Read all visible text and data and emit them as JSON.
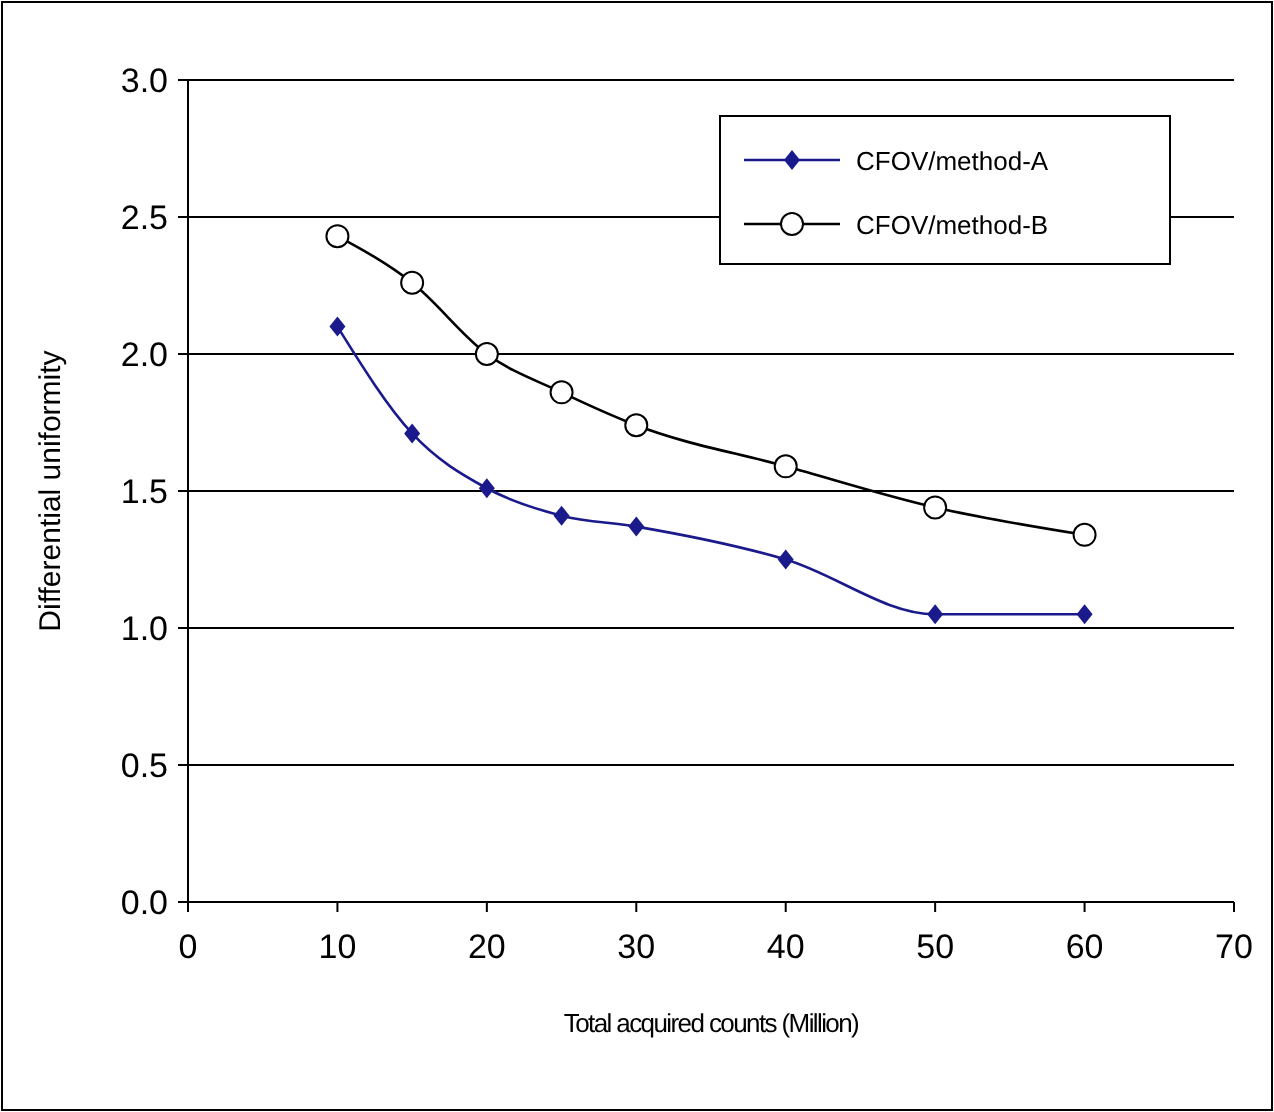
{
  "chart_data": {
    "type": "line",
    "xlabel": "Total acquired counts (Million)",
    "ylabel": "Differential uniformity",
    "x": [
      10,
      15,
      20,
      25,
      30,
      40,
      50,
      60
    ],
    "series": [
      {
        "name": "CFOV/method-A",
        "color": "#1a1a8c",
        "marker": "diamond",
        "values": [
          2.1,
          1.71,
          1.51,
          1.41,
          1.37,
          1.25,
          1.05,
          1.05
        ]
      },
      {
        "name": "CFOV/method-B",
        "color": "#000000",
        "marker": "circle",
        "values": [
          2.43,
          2.26,
          2.0,
          1.86,
          1.74,
          1.59,
          1.44,
          1.34
        ]
      }
    ],
    "xlim": [
      0,
      70
    ],
    "xticks": [
      0,
      10,
      20,
      30,
      40,
      50,
      60,
      70
    ],
    "ylim": [
      0,
      3
    ],
    "yticks": [
      {
        "value": 0,
        "label": "0.0"
      },
      0.5,
      {
        "value": 1,
        "label": "1.0"
      },
      1.5,
      {
        "value": 2,
        "label": "2.0"
      },
      2.5,
      {
        "value": 3,
        "label": "3.0"
      }
    ],
    "grid": "y",
    "legend": "top right"
  }
}
